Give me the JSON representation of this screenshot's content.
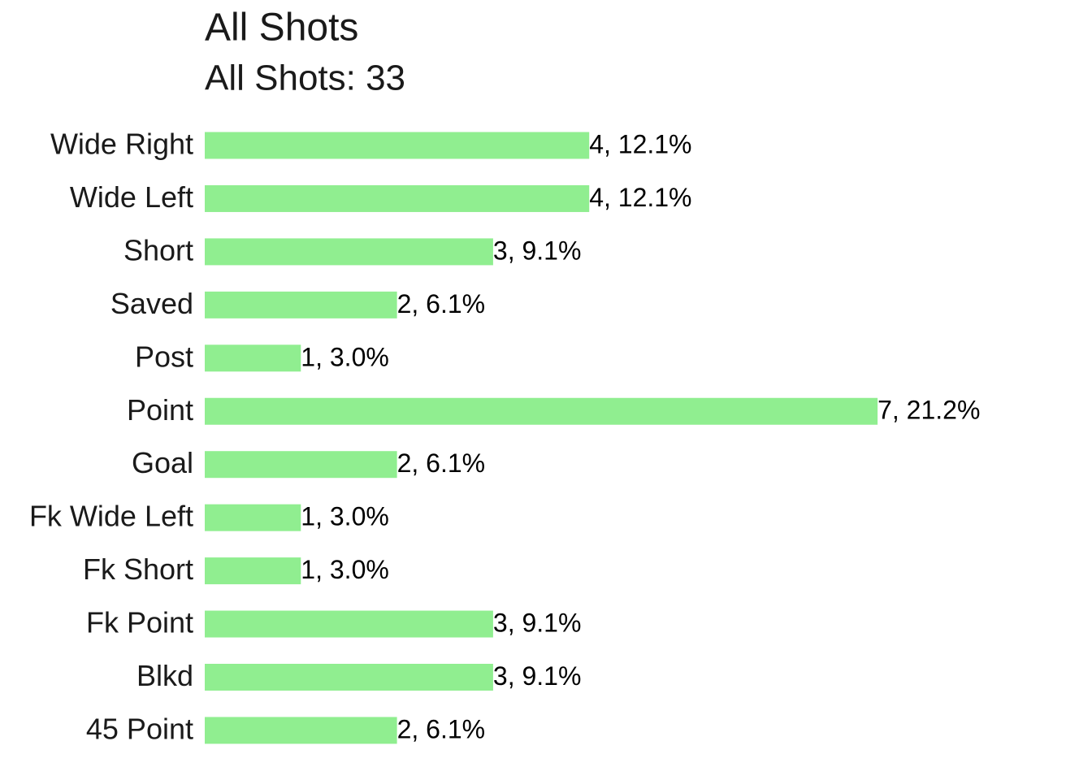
{
  "chart_data": {
    "type": "bar",
    "orientation": "horizontal",
    "title": "All Shots",
    "subtitle": "All Shots: 33",
    "categories": [
      "Wide Right",
      "Wide Left",
      "Short",
      "Saved",
      "Post",
      "Point",
      "Goal",
      "Fk Wide Left",
      "Fk Short",
      "Fk Point",
      "Blkd",
      "45 Point"
    ],
    "values": [
      4,
      4,
      3,
      2,
      1,
      7,
      2,
      1,
      1,
      3,
      3,
      2
    ],
    "value_labels": [
      "4, 12.1%",
      "4, 12.1%",
      "3, 9.1%",
      "2, 6.1%",
      "1, 3.0%",
      "7, 21.2%",
      "2, 6.1%",
      "1, 3.0%",
      "1, 3.0%",
      "3, 9.1%",
      "3, 9.1%",
      "2, 6.1%"
    ],
    "color": "#90ee90"
  }
}
